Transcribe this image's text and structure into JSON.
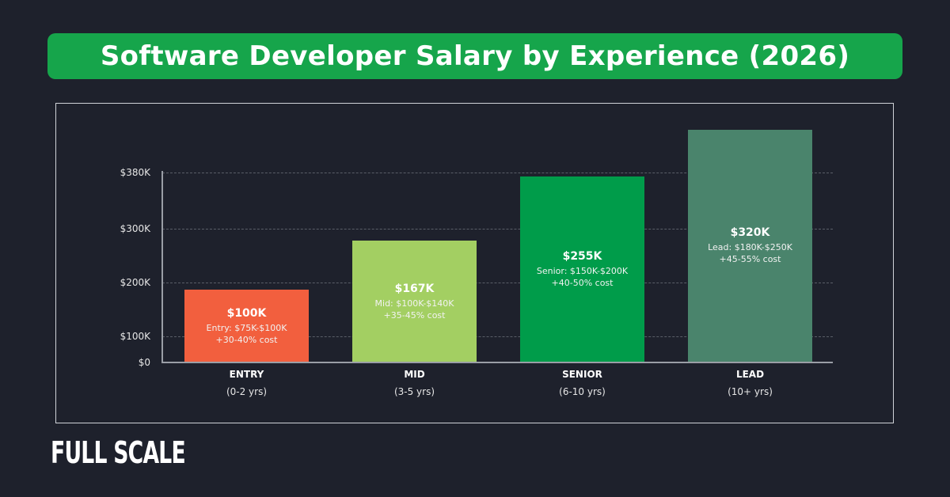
{
  "chart_data": {
    "type": "bar",
    "title": "Software Developer Salary by Experience (2026)",
    "xlabel": "",
    "ylabel": "",
    "y_ticks": [
      "$0",
      "$100K",
      "$200K",
      "$300K",
      "$380K"
    ],
    "categories": [
      "ENTRY",
      "MID",
      "SENIOR",
      "LEAD"
    ],
    "category_sublabels": [
      "(0-2 yrs)",
      "(3-5 yrs)",
      "(6-10 yrs)",
      "(10+ yrs)"
    ],
    "values": [
      100,
      167,
      255,
      320
    ],
    "value_labels": [
      "$100K",
      "$167K",
      "$255K",
      "$320K"
    ],
    "bar_notes": [
      [
        "Entry: $75K-$100K",
        "+30-40% cost"
      ],
      [
        "Mid: $100K-$140K",
        "+35-45% cost"
      ],
      [
        "Senior: $150K-$200K",
        "+40-50% cost"
      ],
      [
        "Lead: $180K-$250K",
        "+45-55% cost"
      ]
    ],
    "colors": [
      "#f25f3e",
      "#a3cf62",
      "#009c4a",
      "#4a846c"
    ],
    "units": "thousand USD",
    "grid": true,
    "legend": "none"
  },
  "brand": {
    "logo_text": "FULL SCALE"
  },
  "colors": {
    "background": "#1e212c",
    "title_bg": "#16a54b"
  }
}
